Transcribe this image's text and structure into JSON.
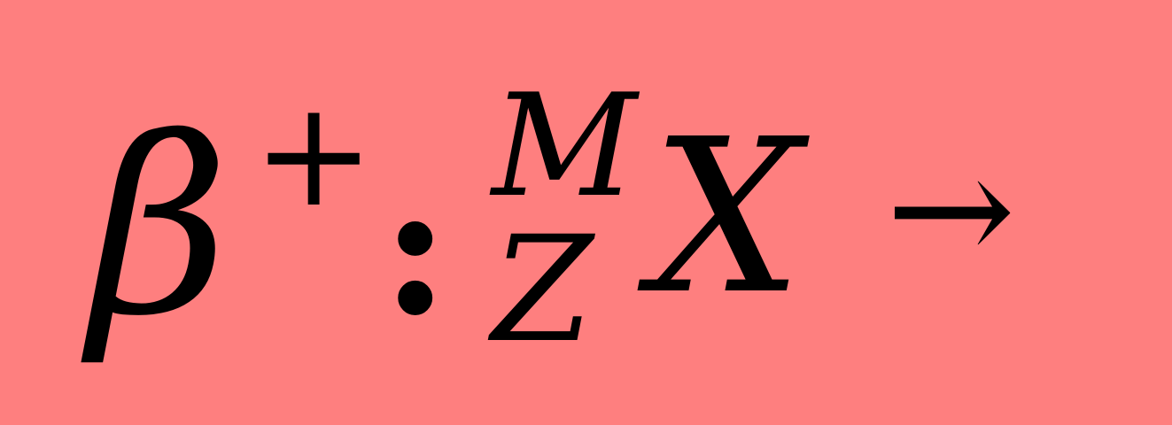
{
  "background_color": "#fe7f7f",
  "text_color": "#000000",
  "formula": {
    "beta": "β",
    "charge": "+",
    "separator": ":",
    "mass_number": "M",
    "atomic_number": "Z",
    "element": "X",
    "arrow": "→"
  }
}
